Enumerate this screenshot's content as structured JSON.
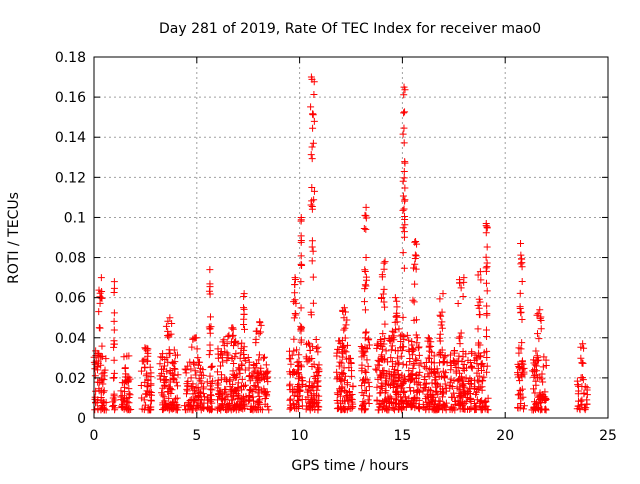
{
  "chart_data": {
    "type": "scatter",
    "title": "Day 281 of 2019, Rate Of TEC Index for receiver mao0",
    "xlabel": "GPS time / hours",
    "ylabel": "ROTI / TECUs",
    "xlim": [
      0,
      25
    ],
    "ylim": [
      0,
      0.18
    ],
    "xticks": [
      0,
      5,
      10,
      15,
      20,
      25
    ],
    "yticks": [
      0,
      0.02,
      0.04,
      0.06,
      0.08,
      0.1,
      0.12,
      0.14,
      0.16,
      0.18
    ],
    "xtick_labels": [
      "0",
      "5",
      "10",
      "15",
      "20",
      "25"
    ],
    "ytick_labels": [
      "0",
      "0.02",
      "0.04",
      "0.06",
      "0.08",
      "0.1",
      "0.12",
      "0.14",
      "0.16",
      "0.18"
    ],
    "grid": true,
    "marker": "+",
    "color": "#ff0000",
    "series": [
      {
        "name": "ROTI",
        "clusters": [
          {
            "x": [
              0.0,
              0.6
            ],
            "base_max": 0.035,
            "peak": 0.07
          },
          {
            "x": [
              0.9,
              1.05
            ],
            "base_max": 0.01,
            "peak": 0.068
          },
          {
            "x": [
              1.3,
              1.8
            ],
            "base_max": 0.032,
            "peak": 0.03
          },
          {
            "x": [
              2.3,
              2.8
            ],
            "base_max": 0.03,
            "peak": 0.035
          },
          {
            "x": [
              3.2,
              4.1
            ],
            "base_max": 0.035,
            "peak": 0.05
          },
          {
            "x": [
              4.4,
              5.4
            ],
            "base_max": 0.028,
            "peak": 0.04
          },
          {
            "x": [
              5.5,
              5.8
            ],
            "base_max": 0.03,
            "peak": 0.074
          },
          {
            "x": [
              6.0,
              7.2
            ],
            "base_max": 0.04,
            "peak": 0.045
          },
          {
            "x": [
              7.2,
              7.4
            ],
            "base_max": 0.03,
            "peak": 0.062
          },
          {
            "x": [
              7.5,
              8.5
            ],
            "base_max": 0.032,
            "peak": 0.048
          },
          {
            "x": [
              9.5,
              10.0
            ],
            "base_max": 0.035,
            "peak": 0.07
          },
          {
            "x": [
              10.0,
              10.15
            ],
            "base_max": 0.03,
            "peak": 0.1
          },
          {
            "x": [
              10.3,
              10.95
            ],
            "base_max": 0.04,
            "peak": 0.17
          },
          {
            "x": [
              11.8,
              12.6
            ],
            "base_max": 0.04,
            "peak": 0.055
          },
          {
            "x": [
              13.0,
              13.4
            ],
            "base_max": 0.04,
            "peak": 0.105
          },
          {
            "x": [
              13.7,
              14.5
            ],
            "base_max": 0.04,
            "peak": 0.078
          },
          {
            "x": [
              14.5,
              14.9
            ],
            "base_max": 0.045,
            "peak": 0.06
          },
          {
            "x": [
              14.9,
              15.25
            ],
            "base_max": 0.045,
            "peak": 0.165
          },
          {
            "x": [
              15.3,
              15.9
            ],
            "base_max": 0.04,
            "peak": 0.088
          },
          {
            "x": [
              16.0,
              16.6
            ],
            "base_max": 0.035,
            "peak": 0.04
          },
          {
            "x": [
              16.6,
              17.2
            ],
            "base_max": 0.035,
            "peak": 0.062
          },
          {
            "x": [
              17.3,
              18.4
            ],
            "base_max": 0.035,
            "peak": 0.07
          },
          {
            "x": [
              18.5,
              19.0
            ],
            "base_max": 0.035,
            "peak": 0.073
          },
          {
            "x": [
              19.0,
              19.2
            ],
            "base_max": 0.01,
            "peak": 0.097
          },
          {
            "x": [
              20.6,
              20.95
            ],
            "base_max": 0.035,
            "peak": 0.087
          },
          {
            "x": [
              21.3,
              22.0
            ],
            "base_max": 0.035,
            "peak": 0.054
          },
          {
            "x": [
              23.5,
              24.0
            ],
            "base_max": 0.02,
            "peak": 0.037
          }
        ]
      }
    ]
  }
}
